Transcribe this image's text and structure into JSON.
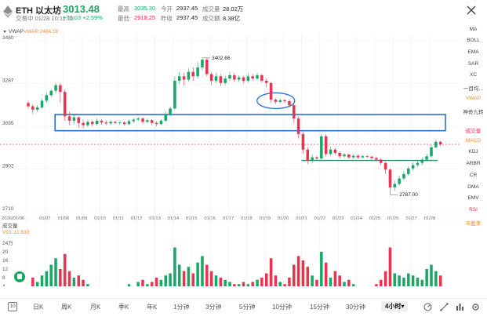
{
  "header": {
    "symbol": "ETH 以太坊",
    "price": "3013.48",
    "time": "交易中 01/28 10:11:12",
    "change": "+76.03 +2.59%",
    "stats": [
      {
        "label": "最高",
        "value": "3035.30",
        "color": "#1aa664"
      },
      {
        "label": "今开",
        "value": "2937.45",
        "color": "#222222"
      },
      {
        "label": "成交量",
        "value": "28.02万",
        "color": "#222222"
      },
      {
        "label": "最低",
        "value": "2918.25",
        "color": "#e8344e"
      },
      {
        "label": "昨收",
        "value": "2937.45",
        "color": "#222222"
      },
      {
        "label": "成交额",
        "value": "8.38亿",
        "color": "#222222"
      }
    ]
  },
  "chart": {
    "vwap_button": "VWAP",
    "vwap_label": "VWAP:2484.59",
    "volume_title": "成交量",
    "volume_label": "VOL:11.833",
    "price_ticks": [
      {
        "label": "3480",
        "value": 3480
      },
      {
        "label": "3287",
        "value": 3287
      },
      {
        "label": "3095",
        "value": 3095
      },
      {
        "label": "2902",
        "value": 2902
      },
      {
        "label": "2710",
        "value": 2710
      }
    ],
    "volume_ticks": [
      {
        "label": "24万",
        "value": 24
      },
      {
        "label": "20",
        "value": 20
      },
      {
        "label": "16",
        "value": 16
      },
      {
        "label": "12",
        "value": 12
      },
      {
        "label": "8",
        "value": 8
      },
      {
        "label": "4",
        "value": 4
      }
    ],
    "dates": [
      "2026/01/06",
      "01/07",
      "01/08",
      "01/09",
      "01/10",
      "01/11",
      "01/12",
      "01/13",
      "01/14",
      "01/15",
      "01/16",
      "01/17",
      "01/18",
      "01/19",
      "01/20",
      "01/21",
      "01/22",
      "01/23",
      "01/24",
      "01/25",
      "01/26",
      "01/27",
      "01/28"
    ],
    "high_annotation": {
      "label": "3402.66",
      "value": 3402.66
    },
    "low_annotation": {
      "label": "2787.00",
      "value": 2787.0
    },
    "current_price": 3013.48,
    "up_color": "#1aa664",
    "down_color": "#e8344e",
    "highlight_color": "#2a6fd6",
    "highlight_zone": {
      "top": 3148,
      "bottom": 3075
    },
    "support_level": 2941
  },
  "chart_data": {
    "type": "candlestick",
    "period": "4小时",
    "price_range": [
      2710,
      3480
    ],
    "volume_range": [
      0,
      24
    ],
    "candles": [
      {
        "day": 0,
        "o": 3200,
        "c": 3185,
        "h": 3210,
        "l": 3175,
        "v": 3
      },
      {
        "day": 0.25,
        "o": 3185,
        "c": 3170,
        "h": 3195,
        "l": 3150,
        "v": 8
      },
      {
        "day": 0.5,
        "o": 3170,
        "c": 3180,
        "h": 3190,
        "l": 3160,
        "v": 6
      },
      {
        "day": 0.75,
        "o": 3180,
        "c": 3210,
        "h": 3220,
        "l": 3175,
        "v": 9
      },
      {
        "day": 1,
        "o": 3210,
        "c": 3235,
        "h": 3245,
        "l": 3200,
        "v": 11
      },
      {
        "day": 1.25,
        "o": 3235,
        "c": 3255,
        "h": 3262,
        "l": 3225,
        "v": 14
      },
      {
        "day": 1.5,
        "o": 3255,
        "c": 3280,
        "h": 3290,
        "l": 3245,
        "v": 17
      },
      {
        "day": 1.75,
        "o": 3280,
        "c": 3250,
        "h": 3290,
        "l": 3200,
        "v": 12
      },
      {
        "day": 2,
        "o": 3250,
        "c": 3140,
        "h": 3260,
        "l": 3120,
        "v": 19
      },
      {
        "day": 2.25,
        "o": 3140,
        "c": 3120,
        "h": 3160,
        "l": 3100,
        "v": 11
      },
      {
        "day": 2.5,
        "o": 3120,
        "c": 3135,
        "h": 3150,
        "l": 3105,
        "v": 8
      },
      {
        "day": 2.75,
        "o": 3135,
        "c": 3110,
        "h": 3140,
        "l": 3090,
        "v": 9
      },
      {
        "day": 3,
        "o": 3110,
        "c": 3100,
        "h": 3125,
        "l": 3085,
        "v": 7
      },
      {
        "day": 3.25,
        "o": 3100,
        "c": 3115,
        "h": 3125,
        "l": 3090,
        "v": 5
      },
      {
        "day": 3.5,
        "o": 3115,
        "c": 3105,
        "h": 3122,
        "l": 3095,
        "v": 4
      },
      {
        "day": 3.75,
        "o": 3105,
        "c": 3120,
        "h": 3130,
        "l": 3098,
        "v": 4
      },
      {
        "day": 4,
        "o": 3120,
        "c": 3112,
        "h": 3128,
        "l": 3102,
        "v": 3
      },
      {
        "day": 4.25,
        "o": 3112,
        "c": 3108,
        "h": 3120,
        "l": 3100,
        "v": 3
      },
      {
        "day": 4.5,
        "o": 3108,
        "c": 3115,
        "h": 3122,
        "l": 3100,
        "v": 3
      },
      {
        "day": 4.75,
        "o": 3115,
        "c": 3110,
        "h": 3120,
        "l": 3104,
        "v": 2
      },
      {
        "day": 5,
        "o": 3110,
        "c": 3112,
        "h": 3118,
        "l": 3102,
        "v": 3
      },
      {
        "day": 5.25,
        "o": 3112,
        "c": 3105,
        "h": 3118,
        "l": 3098,
        "v": 4
      },
      {
        "day": 5.5,
        "o": 3105,
        "c": 3118,
        "h": 3125,
        "l": 3100,
        "v": 5
      },
      {
        "day": 5.75,
        "o": 3118,
        "c": 3125,
        "h": 3132,
        "l": 3110,
        "v": 4
      },
      {
        "day": 6,
        "o": 3125,
        "c": 3130,
        "h": 3138,
        "l": 3118,
        "v": 6
      },
      {
        "day": 6.25,
        "o": 3130,
        "c": 3115,
        "h": 3135,
        "l": 3105,
        "v": 7
      },
      {
        "day": 6.5,
        "o": 3115,
        "c": 3122,
        "h": 3130,
        "l": 3108,
        "v": 5
      },
      {
        "day": 6.75,
        "o": 3122,
        "c": 3110,
        "h": 3128,
        "l": 3100,
        "v": 6
      },
      {
        "day": 7,
        "o": 3110,
        "c": 3105,
        "h": 3118,
        "l": 3095,
        "v": 8
      },
      {
        "day": 7.25,
        "o": 3105,
        "c": 3120,
        "h": 3128,
        "l": 3100,
        "v": 7
      },
      {
        "day": 7.5,
        "o": 3120,
        "c": 3150,
        "h": 3160,
        "l": 3115,
        "v": 9
      },
      {
        "day": 7.75,
        "o": 3150,
        "c": 3175,
        "h": 3185,
        "l": 3140,
        "v": 10
      },
      {
        "day": 8,
        "o": 3175,
        "c": 3300,
        "h": 3320,
        "l": 3170,
        "v": 22
      },
      {
        "day": 8.25,
        "o": 3300,
        "c": 3320,
        "h": 3340,
        "l": 3285,
        "v": 14
      },
      {
        "day": 8.5,
        "o": 3320,
        "c": 3305,
        "h": 3335,
        "l": 3280,
        "v": 11
      },
      {
        "day": 8.75,
        "o": 3305,
        "c": 3340,
        "h": 3355,
        "l": 3295,
        "v": 13
      },
      {
        "day": 9,
        "o": 3340,
        "c": 3320,
        "h": 3360,
        "l": 3300,
        "v": 10
      },
      {
        "day": 9.25,
        "o": 3320,
        "c": 3360,
        "h": 3385,
        "l": 3310,
        "v": 15
      },
      {
        "day": 9.5,
        "o": 3360,
        "c": 3395,
        "h": 3402.66,
        "l": 3345,
        "v": 18
      },
      {
        "day": 9.75,
        "o": 3395,
        "c": 3330,
        "h": 3400,
        "l": 3320,
        "v": 14
      },
      {
        "day": 10,
        "o": 3330,
        "c": 3300,
        "h": 3340,
        "l": 3280,
        "v": 11
      },
      {
        "day": 10.25,
        "o": 3300,
        "c": 3320,
        "h": 3335,
        "l": 3290,
        "v": 9
      },
      {
        "day": 10.5,
        "o": 3320,
        "c": 3290,
        "h": 3330,
        "l": 3275,
        "v": 8
      },
      {
        "day": 10.75,
        "o": 3290,
        "c": 3310,
        "h": 3322,
        "l": 3280,
        "v": 7
      },
      {
        "day": 11,
        "o": 3310,
        "c": 3325,
        "h": 3340,
        "l": 3300,
        "v": 6
      },
      {
        "day": 11.25,
        "o": 3325,
        "c": 3305,
        "h": 3335,
        "l": 3295,
        "v": 5
      },
      {
        "day": 11.5,
        "o": 3305,
        "c": 3315,
        "h": 3325,
        "l": 3295,
        "v": 5
      },
      {
        "day": 11.75,
        "o": 3315,
        "c": 3300,
        "h": 3322,
        "l": 3288,
        "v": 6
      },
      {
        "day": 12,
        "o": 3300,
        "c": 3320,
        "h": 3332,
        "l": 3292,
        "v": 5
      },
      {
        "day": 12.25,
        "o": 3320,
        "c": 3310,
        "h": 3330,
        "l": 3300,
        "v": 6
      },
      {
        "day": 12.5,
        "o": 3310,
        "c": 3325,
        "h": 3336,
        "l": 3302,
        "v": 7
      },
      {
        "day": 12.75,
        "o": 3325,
        "c": 3300,
        "h": 3333,
        "l": 3292,
        "v": 8
      },
      {
        "day": 13,
        "o": 3300,
        "c": 3290,
        "h": 3310,
        "l": 3270,
        "v": 10
      },
      {
        "day": 13.25,
        "o": 3290,
        "c": 3215,
        "h": 3295,
        "l": 3200,
        "v": 17
      },
      {
        "day": 13.5,
        "o": 3215,
        "c": 3205,
        "h": 3222,
        "l": 3195,
        "v": 9
      },
      {
        "day": 13.75,
        "o": 3205,
        "c": 3212,
        "h": 3220,
        "l": 3198,
        "v": 6
      },
      {
        "day": 14,
        "o": 3212,
        "c": 3208,
        "h": 3220,
        "l": 3200,
        "v": 5
      },
      {
        "day": 14.25,
        "o": 3208,
        "c": 3190,
        "h": 3215,
        "l": 3180,
        "v": 8
      },
      {
        "day": 14.5,
        "o": 3190,
        "c": 3130,
        "h": 3195,
        "l": 3110,
        "v": 14
      },
      {
        "day": 14.75,
        "o": 3130,
        "c": 3060,
        "h": 3140,
        "l": 3040,
        "v": 18
      },
      {
        "day": 15,
        "o": 3060,
        "c": 2990,
        "h": 3070,
        "l": 2970,
        "v": 16
      },
      {
        "day": 15.25,
        "o": 2990,
        "c": 2940,
        "h": 3000,
        "l": 2925,
        "v": 13
      },
      {
        "day": 15.5,
        "o": 2940,
        "c": 2955,
        "h": 2968,
        "l": 2930,
        "v": 9
      },
      {
        "day": 15.75,
        "o": 2955,
        "c": 2950,
        "h": 2962,
        "l": 2942,
        "v": 7
      },
      {
        "day": 16,
        "o": 2950,
        "c": 3050,
        "h": 3060,
        "l": 2945,
        "v": 20
      },
      {
        "day": 16.25,
        "o": 3050,
        "c": 2970,
        "h": 3058,
        "l": 2960,
        "v": 15
      },
      {
        "day": 16.5,
        "o": 2970,
        "c": 2990,
        "h": 3002,
        "l": 2962,
        "v": 8
      },
      {
        "day": 16.75,
        "o": 2990,
        "c": 2975,
        "h": 2998,
        "l": 2965,
        "v": 11
      },
      {
        "day": 17,
        "o": 2975,
        "c": 2960,
        "h": 2982,
        "l": 2950,
        "v": 9
      },
      {
        "day": 17.25,
        "o": 2960,
        "c": 2968,
        "h": 2975,
        "l": 2952,
        "v": 6
      },
      {
        "day": 17.5,
        "o": 2968,
        "c": 2955,
        "h": 2972,
        "l": 2948,
        "v": 7
      },
      {
        "day": 17.75,
        "o": 2955,
        "c": 2962,
        "h": 2970,
        "l": 2948,
        "v": 5
      },
      {
        "day": 18,
        "o": 2962,
        "c": 2955,
        "h": 2968,
        "l": 2948,
        "v": 4
      },
      {
        "day": 18.25,
        "o": 2955,
        "c": 2960,
        "h": 2966,
        "l": 2950,
        "v": 4
      },
      {
        "day": 18.5,
        "o": 2960,
        "c": 2958,
        "h": 2964,
        "l": 2952,
        "v": 3
      },
      {
        "day": 18.75,
        "o": 2958,
        "c": 2952,
        "h": 2962,
        "l": 2945,
        "v": 4
      },
      {
        "day": 19,
        "o": 2952,
        "c": 2945,
        "h": 2958,
        "l": 2938,
        "v": 5
      },
      {
        "day": 19.25,
        "o": 2945,
        "c": 2930,
        "h": 2950,
        "l": 2920,
        "v": 7
      },
      {
        "day": 19.5,
        "o": 2930,
        "c": 2900,
        "h": 2935,
        "l": 2880,
        "v": 11
      },
      {
        "day": 19.75,
        "o": 2900,
        "c": 2820,
        "h": 2905,
        "l": 2787,
        "v": 22
      },
      {
        "day": 20,
        "o": 2820,
        "c": 2835,
        "h": 2850,
        "l": 2805,
        "v": 10
      },
      {
        "day": 20.25,
        "o": 2835,
        "c": 2860,
        "h": 2872,
        "l": 2828,
        "v": 9
      },
      {
        "day": 20.5,
        "o": 2860,
        "c": 2880,
        "h": 2892,
        "l": 2852,
        "v": 8
      },
      {
        "day": 20.75,
        "o": 2880,
        "c": 2905,
        "h": 2915,
        "l": 2872,
        "v": 10
      },
      {
        "day": 21,
        "o": 2905,
        "c": 2920,
        "h": 2932,
        "l": 2895,
        "v": 9
      },
      {
        "day": 21.25,
        "o": 2920,
        "c": 2930,
        "h": 2940,
        "l": 2912,
        "v": 8
      },
      {
        "day": 21.5,
        "o": 2930,
        "c": 2945,
        "h": 2955,
        "l": 2920,
        "v": 7
      },
      {
        "day": 21.75,
        "o": 2945,
        "c": 2960,
        "h": 2972,
        "l": 2935,
        "v": 12
      },
      {
        "day": 22,
        "o": 2960,
        "c": 3000,
        "h": 3012,
        "l": 2952,
        "v": 14
      },
      {
        "day": 22.25,
        "o": 3000,
        "c": 3025,
        "h": 3035.3,
        "l": 2995,
        "v": 11
      },
      {
        "day": 22.5,
        "o": 3025,
        "c": 3013.48,
        "h": 3030,
        "l": 3005,
        "v": 9
      }
    ]
  },
  "side_panel": {
    "items": [
      {
        "label": "MA",
        "style": "normal"
      },
      {
        "label": "BOLL",
        "style": "normal"
      },
      {
        "label": "EMA",
        "style": "normal"
      },
      {
        "label": "SAR",
        "style": "normal"
      },
      {
        "label": "XC",
        "style": "normal"
      },
      {
        "label": "一目均...",
        "style": "normal"
      },
      {
        "label": "VWAP",
        "style": "orange"
      },
      {
        "label": "神奇九转",
        "style": "normal"
      },
      {
        "label": "",
        "style": "normal"
      },
      {
        "label": "成交量",
        "style": "red"
      },
      {
        "label": "MACD",
        "style": "orange"
      },
      {
        "label": "KDJ",
        "style": "normal"
      },
      {
        "label": "ARBR",
        "style": "normal"
      },
      {
        "label": "CR",
        "style": "normal"
      },
      {
        "label": "DMA",
        "style": "normal"
      },
      {
        "label": "EMV",
        "style": "normal"
      },
      {
        "label": "RSI",
        "style": "red"
      },
      {
        "label": "市盈率",
        "style": "orange"
      }
    ]
  },
  "toolbar": {
    "items": [
      "日K",
      "周K",
      "月K",
      "季K",
      "年K",
      "1分钟",
      "3分钟",
      "5分钟",
      "10分钟",
      "15分钟",
      "30分钟",
      "4小时▾"
    ],
    "active": "4小时▾",
    "box_label": "10"
  }
}
